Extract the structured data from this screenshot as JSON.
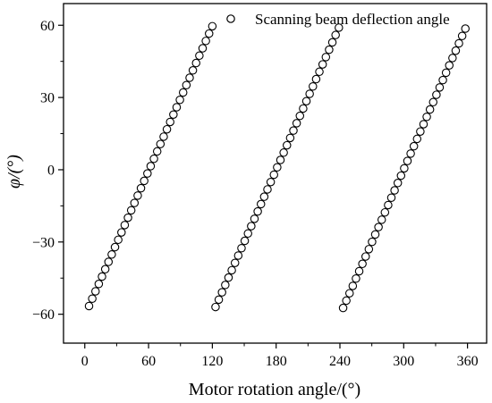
{
  "chart_data": {
    "type": "scatter",
    "xlabel": "Motor rotation angle/(°)",
    "ylabel": "φ/(°)",
    "xlim": [
      -20,
      378
    ],
    "ylim": [
      -72,
      69
    ],
    "x_ticks": [
      0,
      60,
      120,
      180,
      240,
      300,
      360
    ],
    "y_ticks": [
      -60,
      -30,
      0,
      30,
      60
    ],
    "x_tick_labels": [
      "0",
      "60",
      "120",
      "180",
      "240",
      "300",
      "360"
    ],
    "y_tick_labels": [
      "−60",
      "−30",
      "0",
      "30",
      "60"
    ],
    "grid": false,
    "legend_position": "top-right",
    "marker": "open-circle",
    "series": [
      {
        "name": "Scanning beam deflection angle",
        "segments": [
          {
            "x_start": 4,
            "x_end": 120,
            "y_start": -56.6,
            "y_end": 59.6,
            "points": 39
          },
          {
            "x_start": 123,
            "x_end": 239,
            "y_start": -57.0,
            "y_end": 59.0,
            "points": 39
          },
          {
            "x_start": 243,
            "x_end": 358,
            "y_start": -57.4,
            "y_end": 58.6,
            "points": 39
          }
        ]
      }
    ]
  }
}
